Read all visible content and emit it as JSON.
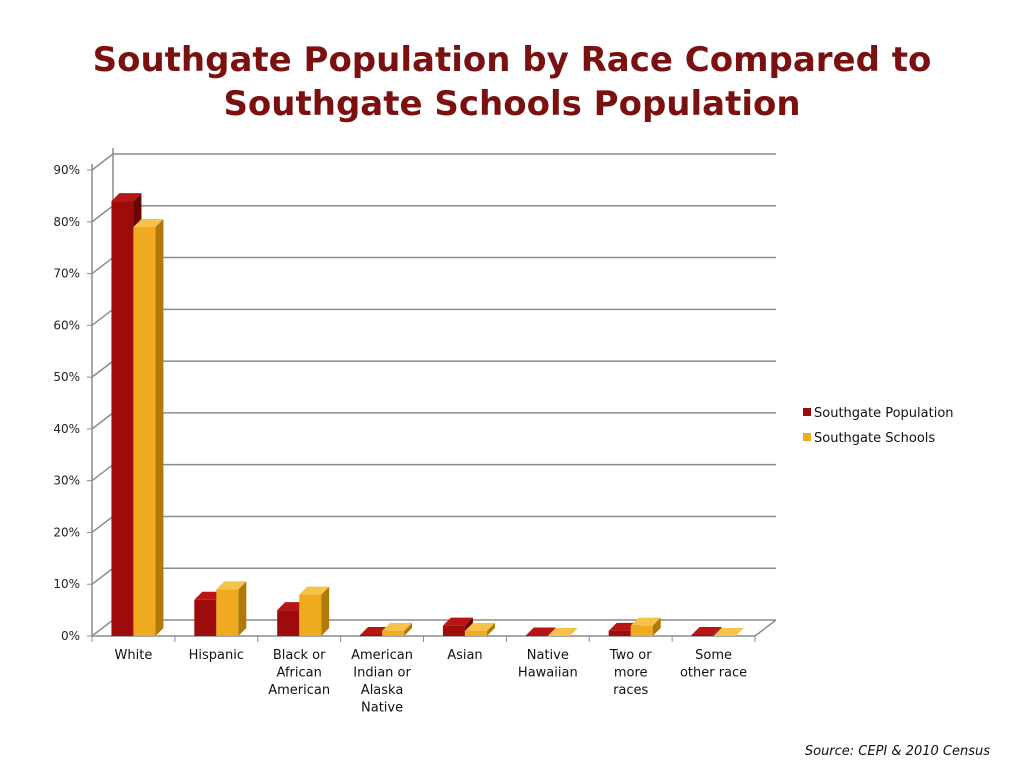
{
  "title_line1": "Southgate Population by Race Compared to",
  "title_line2": "Southgate Schools Population",
  "source": "Source:  CEPI & 2010 Census",
  "colors": {
    "population_front": "#9E0B0B",
    "population_side": "#6A0505",
    "population_top": "#B81515",
    "schools_front": "#EFAA1F",
    "schools_side": "#B07A0A",
    "schools_top": "#F7C24A",
    "title": "#7B1010",
    "grid": "#8C8C8C"
  },
  "chart_data": {
    "type": "bar",
    "title": "Southgate Population by Race Compared to Southgate Schools Population",
    "categories": [
      [
        "White"
      ],
      [
        "Hispanic"
      ],
      [
        "Black or",
        "African",
        "American"
      ],
      [
        "American",
        "Indian or",
        "Alaska",
        "Native"
      ],
      [
        "Asian"
      ],
      [
        "Native",
        "Hawaiian"
      ],
      [
        "Two or",
        "more",
        "races"
      ],
      [
        "Some",
        "other race"
      ]
    ],
    "series": [
      {
        "name": "Southgate Population",
        "values": [
          84,
          7,
          5,
          0.2,
          2,
          0.1,
          1,
          0.2
        ]
      },
      {
        "name": "Southgate Schools",
        "values": [
          79,
          9,
          8,
          1,
          1,
          0,
          2,
          0
        ]
      }
    ],
    "yticks": [
      "0%",
      "10%",
      "20%",
      "30%",
      "40%",
      "50%",
      "60%",
      "70%",
      "80%",
      "90%"
    ],
    "ylim": [
      0,
      90
    ],
    "grid": true,
    "legend_position": "right"
  }
}
